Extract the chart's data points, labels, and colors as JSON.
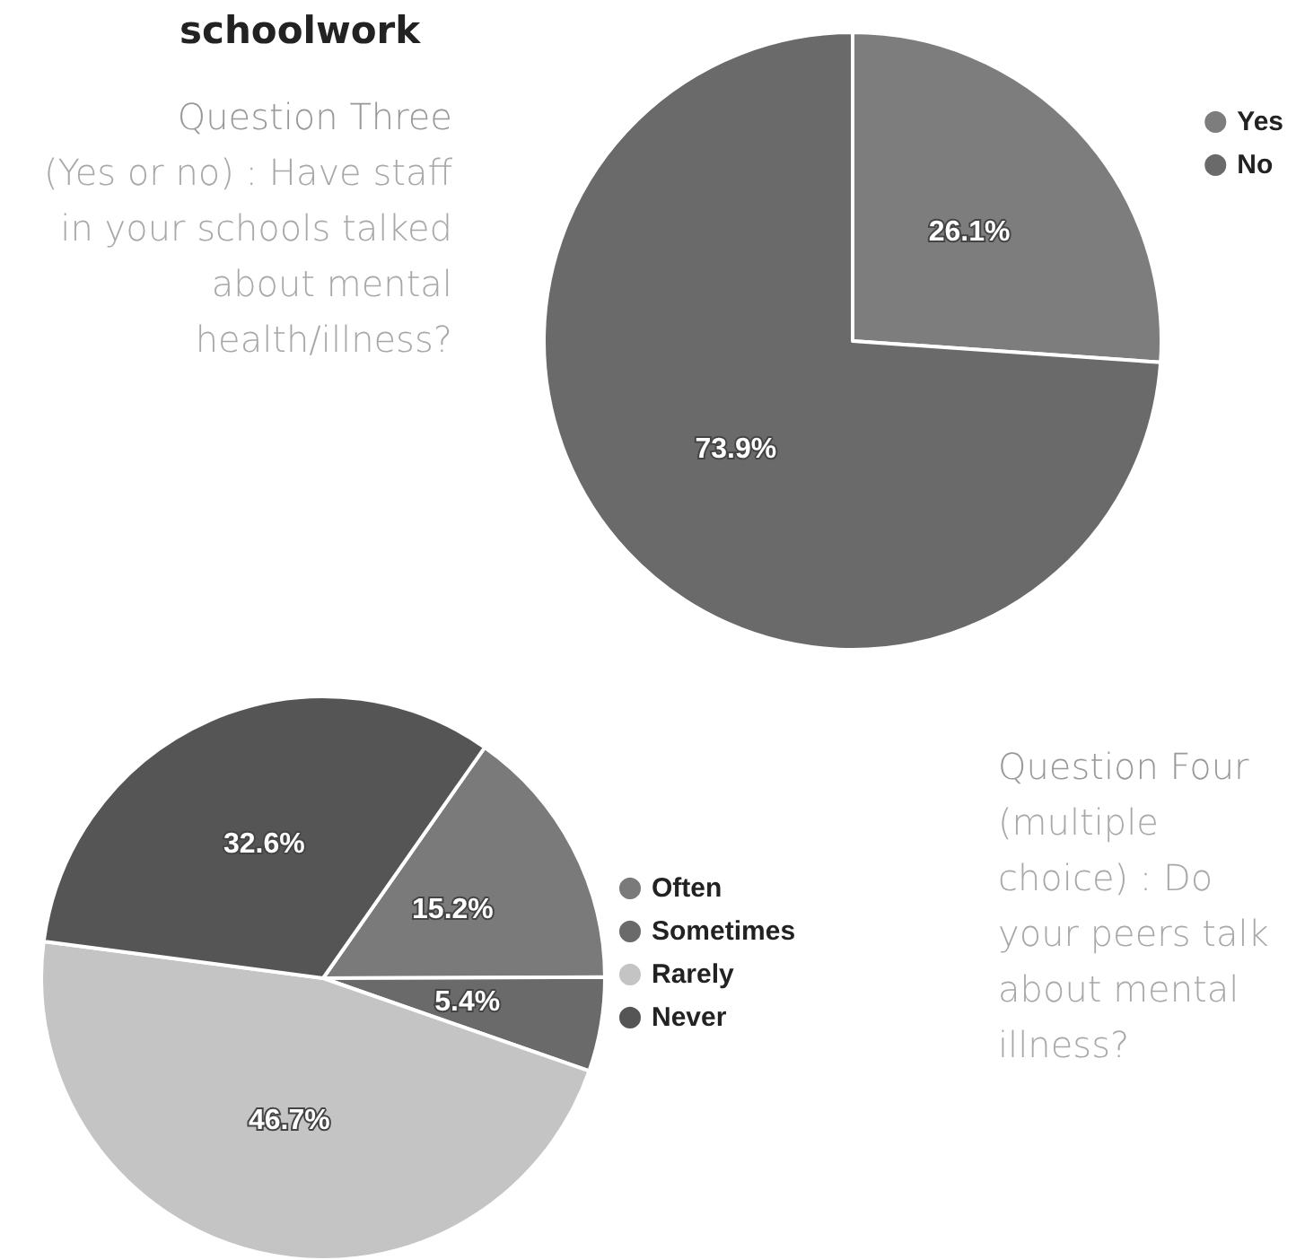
{
  "chart_data": [
    {
      "type": "pie",
      "title": "Question Three",
      "subtitle": "(Yes or no) : Have staff in your schools talked about mental health/illness?",
      "annotations": [
        "schoolwork"
      ],
      "categories": [
        "Yes",
        "No"
      ],
      "values": [
        26.1,
        73.9
      ],
      "value_labels": [
        "26.1%",
        "73.9%"
      ],
      "colors": [
        "#7d7d7d",
        "#6a6a6a"
      ],
      "legend": "top right"
    },
    {
      "type": "pie",
      "title": "Question Four",
      "subtitle": "(multiple choice) : Do your peers talk about mental illness?",
      "categories": [
        "Often",
        "Sometimes",
        "Rarely",
        "Never"
      ],
      "values": [
        15.2,
        5.4,
        46.7,
        32.6
      ],
      "value_labels": [
        "15.2%",
        "5.4%",
        "46.7%",
        "32.6%"
      ],
      "colors": [
        "#7a7a7a",
        "#6a6a6a",
        "#c4c4c4",
        "#555555"
      ],
      "legend": "right"
    }
  ]
}
